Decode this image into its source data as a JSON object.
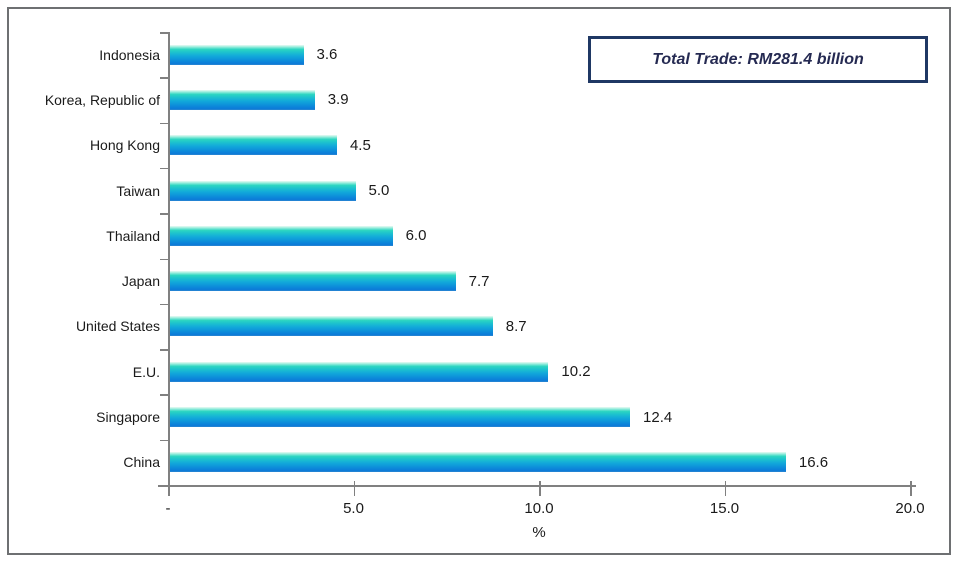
{
  "annotation_box": {
    "label": "Total Trade: RM281.4 billion",
    "border_color": "#1F3864",
    "text_color": "#252a52"
  },
  "chart_data": {
    "type": "bar",
    "orientation": "horizontal",
    "title": "",
    "categories": [
      "Indonesia",
      "Korea, Republic of",
      "Hong Kong",
      "Taiwan",
      "Thailand",
      "Japan",
      "United States",
      "E.U.",
      "Singapore",
      "China"
    ],
    "values": [
      3.6,
      3.9,
      4.5,
      5.0,
      6.0,
      7.7,
      8.7,
      10.2,
      12.4,
      16.6
    ],
    "value_labels": [
      "3.6",
      "3.9",
      "4.5",
      "5.0",
      "6.0",
      "7.7",
      "8.7",
      "10.2",
      "12.4",
      "16.6"
    ],
    "xlabel": "%",
    "ylabel": "",
    "xlim": [
      0,
      20
    ],
    "x_ticks": [
      0,
      5,
      10,
      15,
      20
    ],
    "x_tick_labels": [
      "-",
      "5.0",
      "10.0",
      "15.0",
      "20.0"
    ],
    "grid": "off",
    "legend": "none",
    "annotation": "Total Trade: RM281.4 billion",
    "bar_gradient_colors": [
      "#eafaf4",
      "#2bd5c1",
      "#12a9da",
      "#0c85da",
      "#2f88d0"
    ],
    "axis_color": "#808080",
    "text_color": "#1a1a1a",
    "frame_border_color": "#6e7072"
  }
}
